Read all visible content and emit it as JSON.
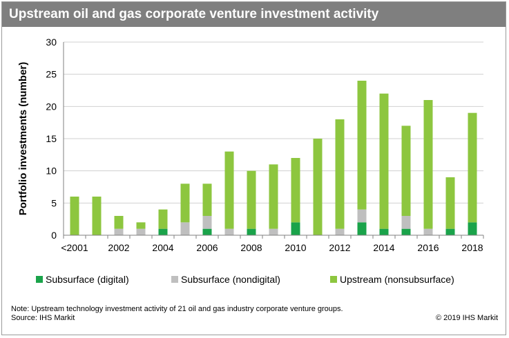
{
  "chart_data": {
    "type": "bar",
    "stacked": true,
    "title": "Upstream oil and gas corporate venture investment activity",
    "ylabel": "Portfolio investments (number)",
    "xlabel": "",
    "ylim": [
      0,
      30
    ],
    "yticks": [
      "0",
      "5",
      "10",
      "15",
      "20",
      "25",
      "30"
    ],
    "grid": true,
    "legend_position": "bottom",
    "categories": [
      "<2001",
      "2001",
      "2002",
      "2003",
      "2004",
      "2005",
      "2006",
      "2007",
      "2008",
      "2009",
      "2010",
      "2011",
      "2012",
      "2013",
      "2014",
      "2015",
      "2016",
      "2017",
      "2018"
    ],
    "tick_labels": [
      "<2001",
      "",
      "2002",
      "",
      "2004",
      "",
      "2006",
      "",
      "2008",
      "",
      "2010",
      "",
      "2012",
      "",
      "2014",
      "",
      "2016",
      "",
      "2018"
    ],
    "series": [
      {
        "name": "Subsurface (digital)",
        "color": "#1aa34a",
        "values": [
          0,
          0,
          0,
          0,
          1,
          0,
          1,
          0,
          1,
          0,
          2,
          0,
          0,
          2,
          1,
          1,
          0,
          1,
          2
        ]
      },
      {
        "name": "Subsurface (nondigital)",
        "color": "#bfbfbf",
        "values": [
          0,
          0,
          1,
          1,
          0,
          2,
          2,
          1,
          0,
          1,
          0,
          0,
          1,
          2,
          0,
          2,
          1,
          0,
          0
        ]
      },
      {
        "name": "Upstream (nonsubsurface)",
        "color": "#8dc63f",
        "values": [
          6,
          6,
          2,
          1,
          3,
          6,
          5,
          12,
          9,
          10,
          10,
          15,
          17,
          20,
          21,
          14,
          20,
          8,
          17
        ]
      }
    ]
  },
  "footer": {
    "note": "Note: Upstream technology investment activity of 21 oil and gas industry corporate venture groups.",
    "source": "Source: IHS Markit",
    "copyright": "© 2019 IHS Markit"
  }
}
